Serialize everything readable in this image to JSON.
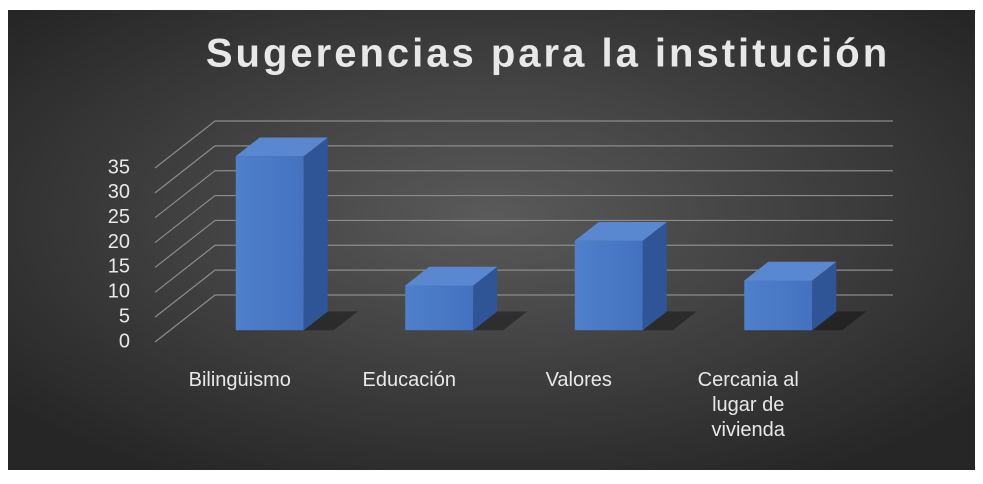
{
  "chart_data": {
    "type": "bar3d",
    "title": "Sugerencias para la institución",
    "categories": [
      "Bilingüismo",
      "Educación",
      "Valores",
      "Cercania al lugar de vivienda"
    ],
    "values": [
      35,
      9,
      18,
      10
    ],
    "color": "#4a7bc8",
    "ylim": [
      0,
      35
    ],
    "yticks": [
      0,
      5,
      10,
      15,
      20,
      25,
      30,
      35
    ],
    "grid": true
  }
}
